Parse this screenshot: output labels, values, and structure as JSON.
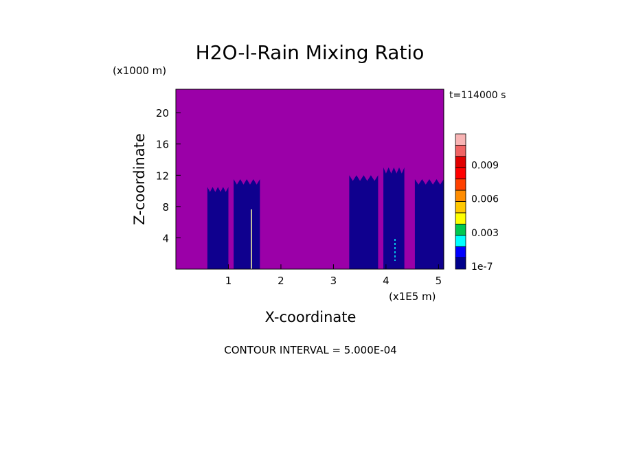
{
  "chart_data": {
    "type": "heatmap",
    "title": "H2O-l-Rain Mixing Ratio",
    "xlabel": "X-coordinate",
    "ylabel": "Z-coordinate",
    "x_unit": "(x1E5 m)",
    "y_unit": "(x1000 m)",
    "time_label": "t=114000 s",
    "footer": "CONTOUR INTERVAL = 5.000E-04",
    "xlim": [
      0,
      5.1
    ],
    "ylim": [
      0,
      23
    ],
    "x_ticks": [
      1,
      2,
      3,
      4,
      5
    ],
    "y_ticks": [
      4,
      8,
      12,
      16,
      20
    ],
    "colorbar": {
      "levels": [
        "1e-7",
        "",
        "",
        "0.003",
        "",
        "",
        "0.006",
        "",
        "",
        "0.009",
        "",
        ""
      ],
      "colors": [
        "#00008b",
        "#0000ff",
        "#00ffff",
        "#00c850",
        "#ffff00",
        "#ffc800",
        "#ff8c00",
        "#ff4000",
        "#ff0000",
        "#e00000",
        "#f06464",
        "#f8b4b4"
      ]
    },
    "background_color": "#9b00a8",
    "regions": [
      {
        "x": [
          0.6,
          1.0
        ],
        "z": [
          0,
          10.5
        ],
        "value": "1e-7"
      },
      {
        "x": [
          1.1,
          1.6
        ],
        "z": [
          0,
          11.5
        ],
        "value": "1e-7"
      },
      {
        "x": [
          3.3,
          3.85
        ],
        "z": [
          0,
          12
        ],
        "value": "1e-7"
      },
      {
        "x": [
          3.95,
          4.35
        ],
        "z": [
          0,
          13
        ],
        "value": "1e-7"
      },
      {
        "x": [
          4.55,
          5.1
        ],
        "z": [
          0,
          11.5
        ],
        "value": "1e-7"
      }
    ]
  }
}
